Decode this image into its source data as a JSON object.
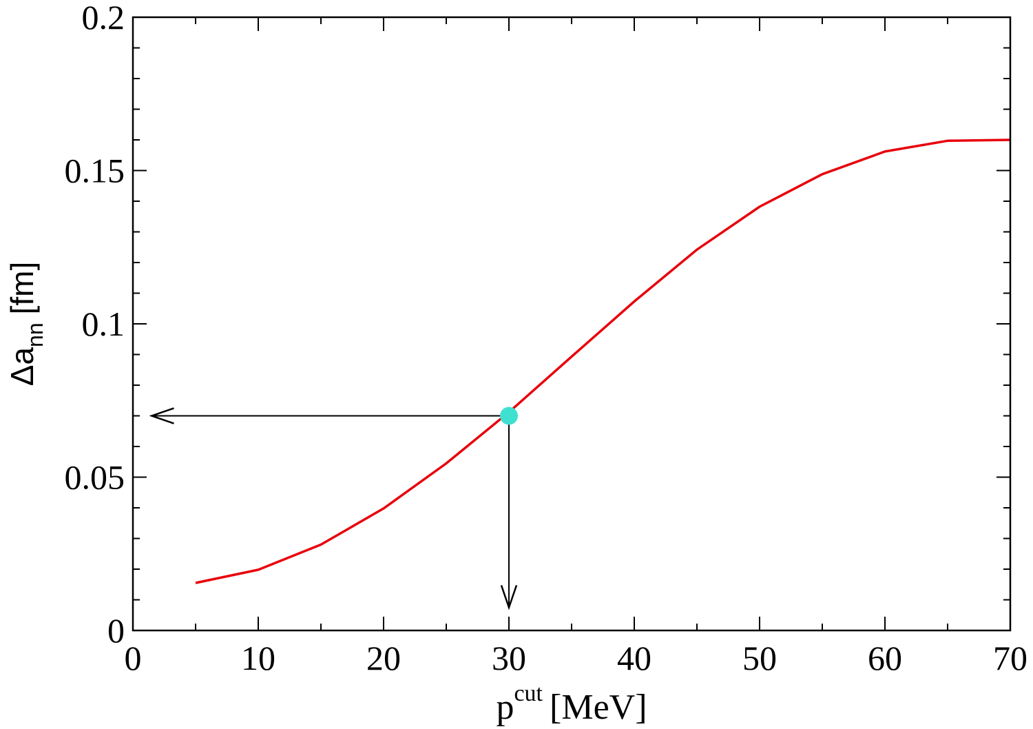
{
  "chart_data": {
    "type": "line",
    "title": "",
    "xlabel": {
      "main": "p",
      "sup": "cut",
      "unit": "[MeV]"
    },
    "ylabel": {
      "prefix": "Δa",
      "sub": "nn",
      "unit": "[fm]"
    },
    "xlim": [
      0,
      70
    ],
    "ylim": [
      0,
      0.2
    ],
    "x_ticks": [
      0,
      10,
      20,
      30,
      40,
      50,
      60,
      70
    ],
    "y_ticks": [
      0,
      0.05,
      0.1,
      0.15,
      0.2
    ],
    "x_tick_labels": [
      "0",
      "10",
      "20",
      "30",
      "40",
      "50",
      "60",
      "70"
    ],
    "y_tick_labels": [
      "0",
      "0.05",
      "0.1",
      "0.15",
      "0.2"
    ],
    "grid": false,
    "legend": "none",
    "series": [
      {
        "color": "#e8000b",
        "x": [
          5,
          10,
          15,
          20,
          25,
          30,
          35,
          40,
          45,
          50,
          55,
          60,
          65,
          70
        ],
        "y": [
          0.0155,
          0.0198,
          0.028,
          0.0398,
          0.0545,
          0.0712,
          0.0893,
          0.1073,
          0.1242,
          0.1382,
          0.1488,
          0.1562,
          0.1597,
          0.16
        ]
      }
    ],
    "highlight_point": {
      "x": 30,
      "y": 0.07,
      "color": "#40e0d0"
    },
    "arrows": [
      {
        "from": [
          30,
          0.07
        ],
        "to": [
          1.5,
          0.07
        ],
        "color": "#000000"
      },
      {
        "from": [
          30,
          0.07
        ],
        "to": [
          30,
          0.0075
        ],
        "color": "#000000"
      }
    ]
  }
}
